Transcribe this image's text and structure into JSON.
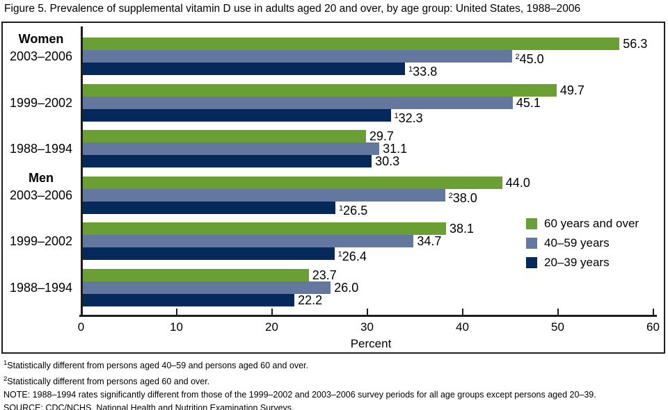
{
  "title": "Figure 5. Prevalence of supplemental vitamin D use in adults aged 20 and over, by age group: United States, 1988–2006",
  "chart_data": {
    "type": "bar",
    "orientation": "horizontal",
    "xlabel": "Percent",
    "xlim": [
      0,
      60
    ],
    "xticks": [
      0,
      10,
      20,
      30,
      40,
      50,
      60
    ],
    "grid": false,
    "legend_position": "right-lower",
    "series": [
      {
        "name": "60 years and over",
        "color": "#6A9F34"
      },
      {
        "name": "40–59 years",
        "color": "#64779E"
      },
      {
        "name": "20–39 years",
        "color": "#06295B"
      }
    ],
    "groups": [
      {
        "section": "Women",
        "period": "2003–2006",
        "bars": [
          {
            "v": 56.3,
            "label": "56.3",
            "sup": ""
          },
          {
            "v": 45.0,
            "label": "45.0",
            "sup": "2"
          },
          {
            "v": 33.8,
            "label": "33.8",
            "sup": "1"
          }
        ]
      },
      {
        "section": "",
        "period": "1999–2002",
        "bars": [
          {
            "v": 49.7,
            "label": "49.7",
            "sup": ""
          },
          {
            "v": 45.1,
            "label": "45.1",
            "sup": ""
          },
          {
            "v": 32.3,
            "label": "32.3",
            "sup": "1"
          }
        ]
      },
      {
        "section": "",
        "period": "1988–1994",
        "bars": [
          {
            "v": 29.7,
            "label": "29.7",
            "sup": ""
          },
          {
            "v": 31.1,
            "label": "31.1",
            "sup": ""
          },
          {
            "v": 30.3,
            "label": "30.3",
            "sup": ""
          }
        ]
      },
      {
        "section": "Men",
        "period": "2003–2006",
        "bars": [
          {
            "v": 44.0,
            "label": "44.0",
            "sup": ""
          },
          {
            "v": 38.0,
            "label": "38.0",
            "sup": "2"
          },
          {
            "v": 26.5,
            "label": "26.5",
            "sup": "1"
          }
        ]
      },
      {
        "section": "",
        "period": "1999–2002",
        "bars": [
          {
            "v": 38.1,
            "label": "38.1",
            "sup": ""
          },
          {
            "v": 34.7,
            "label": "34.7",
            "sup": ""
          },
          {
            "v": 26.4,
            "label": "26.4",
            "sup": "1"
          }
        ]
      },
      {
        "section": "",
        "period": "1988–1994",
        "bars": [
          {
            "v": 23.7,
            "label": "23.7",
            "sup": ""
          },
          {
            "v": 26.0,
            "label": "26.0",
            "sup": ""
          },
          {
            "v": 22.2,
            "label": "22.2",
            "sup": ""
          }
        ]
      }
    ]
  },
  "footnotes": [
    {
      "sup": "1",
      "text": "Statistically different from persons aged 40–59 and persons aged 60 and over."
    },
    {
      "sup": "2",
      "text": "Statistically different from persons aged 60 and over."
    },
    {
      "sup": "",
      "text": "NOTE: 1988–1994 rates significantly different from those of the 1999–2002 and 2003–2006 survey periods for all age groups except persons aged 20–39."
    },
    {
      "sup": "",
      "text": "SOURCE: CDC/NCHS, National Health and Nutrition Examination Surveys."
    }
  ]
}
